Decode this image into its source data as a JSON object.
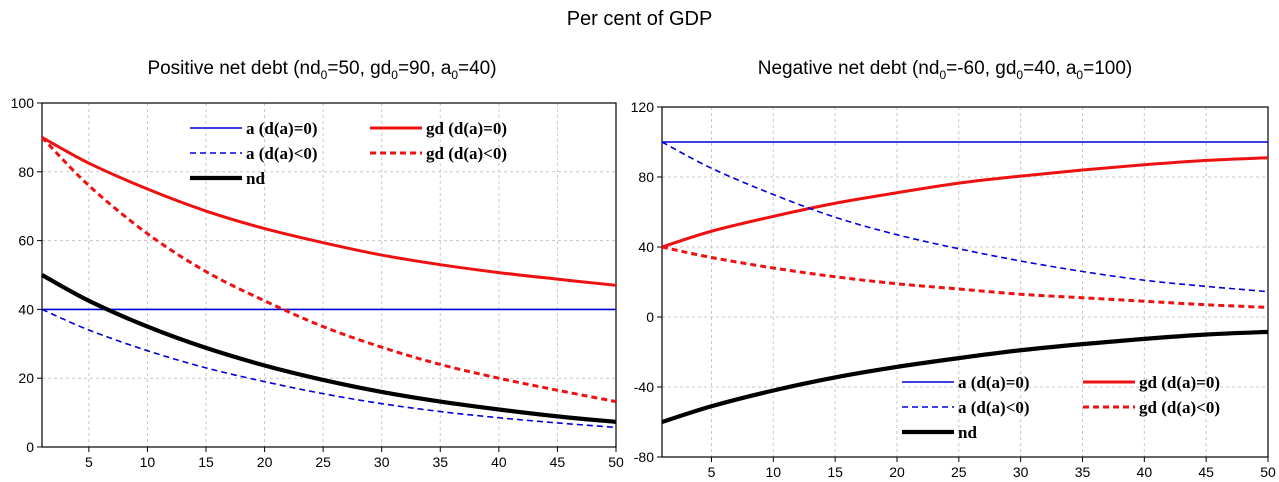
{
  "figure_title": "Per cent of GDP",
  "colors": {
    "blue": "#0000dd",
    "red": "#ee1111",
    "black": "#000000",
    "grid": "#c8c8c8"
  },
  "chart_data": [
    {
      "type": "line",
      "title": {
        "text_before": "Positive net debt (nd",
        "sub1": "0",
        "text_mid1": "=50, gd",
        "sub2": "0",
        "text_mid2": "=90, a",
        "sub3": "0",
        "text_after": "=40)"
      },
      "xlabel": "",
      "ylabel": "",
      "xlim": [
        1,
        50
      ],
      "ylim": [
        0,
        100
      ],
      "xticks": [
        5,
        10,
        15,
        20,
        25,
        30,
        35,
        40,
        45,
        50
      ],
      "yticks": [
        0,
        20,
        40,
        60,
        80,
        100
      ],
      "grid": true,
      "legend_position": "top-right",
      "legend_rows": [
        [
          {
            "series": 0,
            "label": "a   (d(a)=0)"
          },
          {
            "series": 1,
            "label": "gd (d(a)=0)"
          }
        ],
        [
          {
            "series": 2,
            "label": "a   (d(a)<0)"
          },
          {
            "series": 3,
            "label": "gd (d(a)<0)"
          }
        ],
        [
          {
            "series": 4,
            "label": "nd"
          }
        ]
      ],
      "x": [
        1,
        5,
        10,
        15,
        20,
        25,
        30,
        35,
        40,
        45,
        50
      ],
      "series": [
        {
          "name": "a   (d(a)=0)",
          "color": "#0000dd",
          "dash": "solid",
          "width": "thin",
          "values": [
            40,
            40,
            40,
            40,
            40,
            40,
            40,
            40,
            40,
            40,
            40
          ]
        },
        {
          "name": "gd (d(a)=0)",
          "color": "#ee1111",
          "dash": "solid",
          "width": "medium",
          "values": [
            90,
            82.5,
            75,
            68.6,
            63.5,
            59.4,
            55.8,
            53,
            50.7,
            48.8,
            47
          ]
        },
        {
          "name": "a   (d(a)<0)",
          "color": "#0000dd",
          "dash": "dashed",
          "width": "thin",
          "values": [
            40,
            34,
            28,
            23,
            19,
            15.5,
            12.6,
            10.3,
            8.5,
            7,
            5.7
          ]
        },
        {
          "name": "gd (d(a)<0)",
          "color": "#ee1111",
          "dash": "dashed",
          "width": "medium",
          "values": [
            90,
            76,
            62,
            51,
            42.5,
            35,
            29,
            24,
            20,
            16.5,
            13.2
          ]
        },
        {
          "name": "nd",
          "color": "#000000",
          "dash": "solid",
          "width": "thick",
          "values": [
            50,
            42.5,
            35,
            28.8,
            23.7,
            19.5,
            16,
            13.2,
            10.9,
            8.9,
            7.3
          ]
        }
      ]
    },
    {
      "type": "line",
      "title": {
        "text_before": "Negative net debt (nd",
        "sub1": "0",
        "text_mid1": "=-60, gd",
        "sub2": "0",
        "text_mid2": "=40, a",
        "sub3": "0",
        "text_after": "=100)"
      },
      "xlabel": "",
      "ylabel": "",
      "xlim": [
        1,
        50
      ],
      "ylim": [
        -80,
        120
      ],
      "xticks": [
        5,
        10,
        15,
        20,
        25,
        30,
        35,
        40,
        45,
        50
      ],
      "yticks": [
        -80,
        -40,
        0,
        40,
        80,
        120
      ],
      "grid": true,
      "legend_position": "bottom-right",
      "legend_rows": [
        [
          {
            "series": 0,
            "label": "a   (d(a)=0)"
          },
          {
            "series": 1,
            "label": "gd (d(a)=0)"
          }
        ],
        [
          {
            "series": 2,
            "label": "a   (d(a)<0)"
          },
          {
            "series": 3,
            "label": "gd (d(a)<0)"
          }
        ],
        [
          {
            "series": 4,
            "label": "nd"
          }
        ]
      ],
      "x": [
        1,
        5,
        10,
        15,
        20,
        25,
        30,
        35,
        40,
        45,
        50
      ],
      "series": [
        {
          "name": "a   (d(a)=0)",
          "color": "#0000dd",
          "dash": "solid",
          "width": "thin",
          "values": [
            100,
            100,
            100,
            100,
            100,
            100,
            100,
            100,
            100,
            100,
            100
          ]
        },
        {
          "name": "gd (d(a)=0)",
          "color": "#ee1111",
          "dash": "solid",
          "width": "medium",
          "values": [
            40,
            49,
            57.5,
            65,
            71,
            76.5,
            80.5,
            84,
            87,
            89.5,
            91
          ]
        },
        {
          "name": "a   (d(a)<0)",
          "color": "#0000dd",
          "dash": "dashed",
          "width": "thin",
          "values": [
            100,
            85,
            70,
            57,
            47,
            39,
            32,
            26,
            21,
            17.5,
            14.5
          ]
        },
        {
          "name": "gd (d(a)<0)",
          "color": "#ee1111",
          "dash": "dashed",
          "width": "medium",
          "values": [
            40,
            34,
            28,
            23,
            19,
            16,
            13,
            11,
            9,
            7,
            5.5
          ]
        },
        {
          "name": "nd",
          "color": "#000000",
          "dash": "solid",
          "width": "thick",
          "values": [
            -60,
            -51,
            -42,
            -34.5,
            -28.5,
            -23.5,
            -19,
            -15.5,
            -12.5,
            -10,
            -8.5
          ]
        }
      ]
    }
  ]
}
